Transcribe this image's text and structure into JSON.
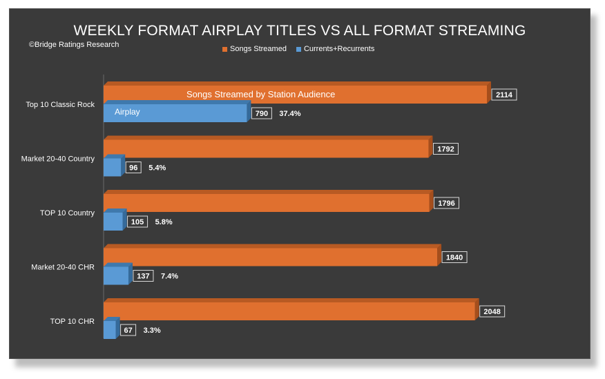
{
  "colors": {
    "background": "#3a3a3a",
    "songs_streamed": "#e0702f",
    "songs_streamed_top": "#b85a23",
    "songs_streamed_side": "#a54e1c",
    "airplay": "#5a9ad5",
    "airplay_top": "#3f79ad",
    "airplay_side": "#356a9a",
    "text": "#ffffff"
  },
  "chart_data": {
    "type": "bar",
    "orientation": "horizontal",
    "style": "3d",
    "title": "WEEKLY FORMAT AIRPLAY TITLES VS ALL FORMAT STREAMING",
    "source": "©Bridge Ratings Research",
    "categories": [
      "Top 10 Classic Rock",
      "Market 20-40 Country",
      "TOP 10 Country",
      "Market 20-40 CHR",
      "TOP 10 CHR"
    ],
    "series": [
      {
        "name": "Songs Streamed",
        "values": [
          2114,
          1792,
          1796,
          1840,
          2048
        ],
        "value_labels": [
          "2114",
          "1792",
          "1796",
          "1840",
          "2048"
        ]
      },
      {
        "name": "Currents+Recurrents",
        "values": [
          790,
          96,
          105,
          137,
          67
        ],
        "value_labels": [
          "790",
          "96",
          "105",
          "137",
          "67"
        ],
        "percent_labels": [
          "37.4%",
          "5.4%",
          "5.8%",
          "7.4%",
          "3.3%"
        ]
      }
    ],
    "annotations": {
      "songs_streamed_bar": "Songs Streamed by Station Audience",
      "airplay_bar": "Airplay"
    },
    "xlim": [
      0,
      2500
    ],
    "legend_position": "top-center",
    "grid": false
  }
}
